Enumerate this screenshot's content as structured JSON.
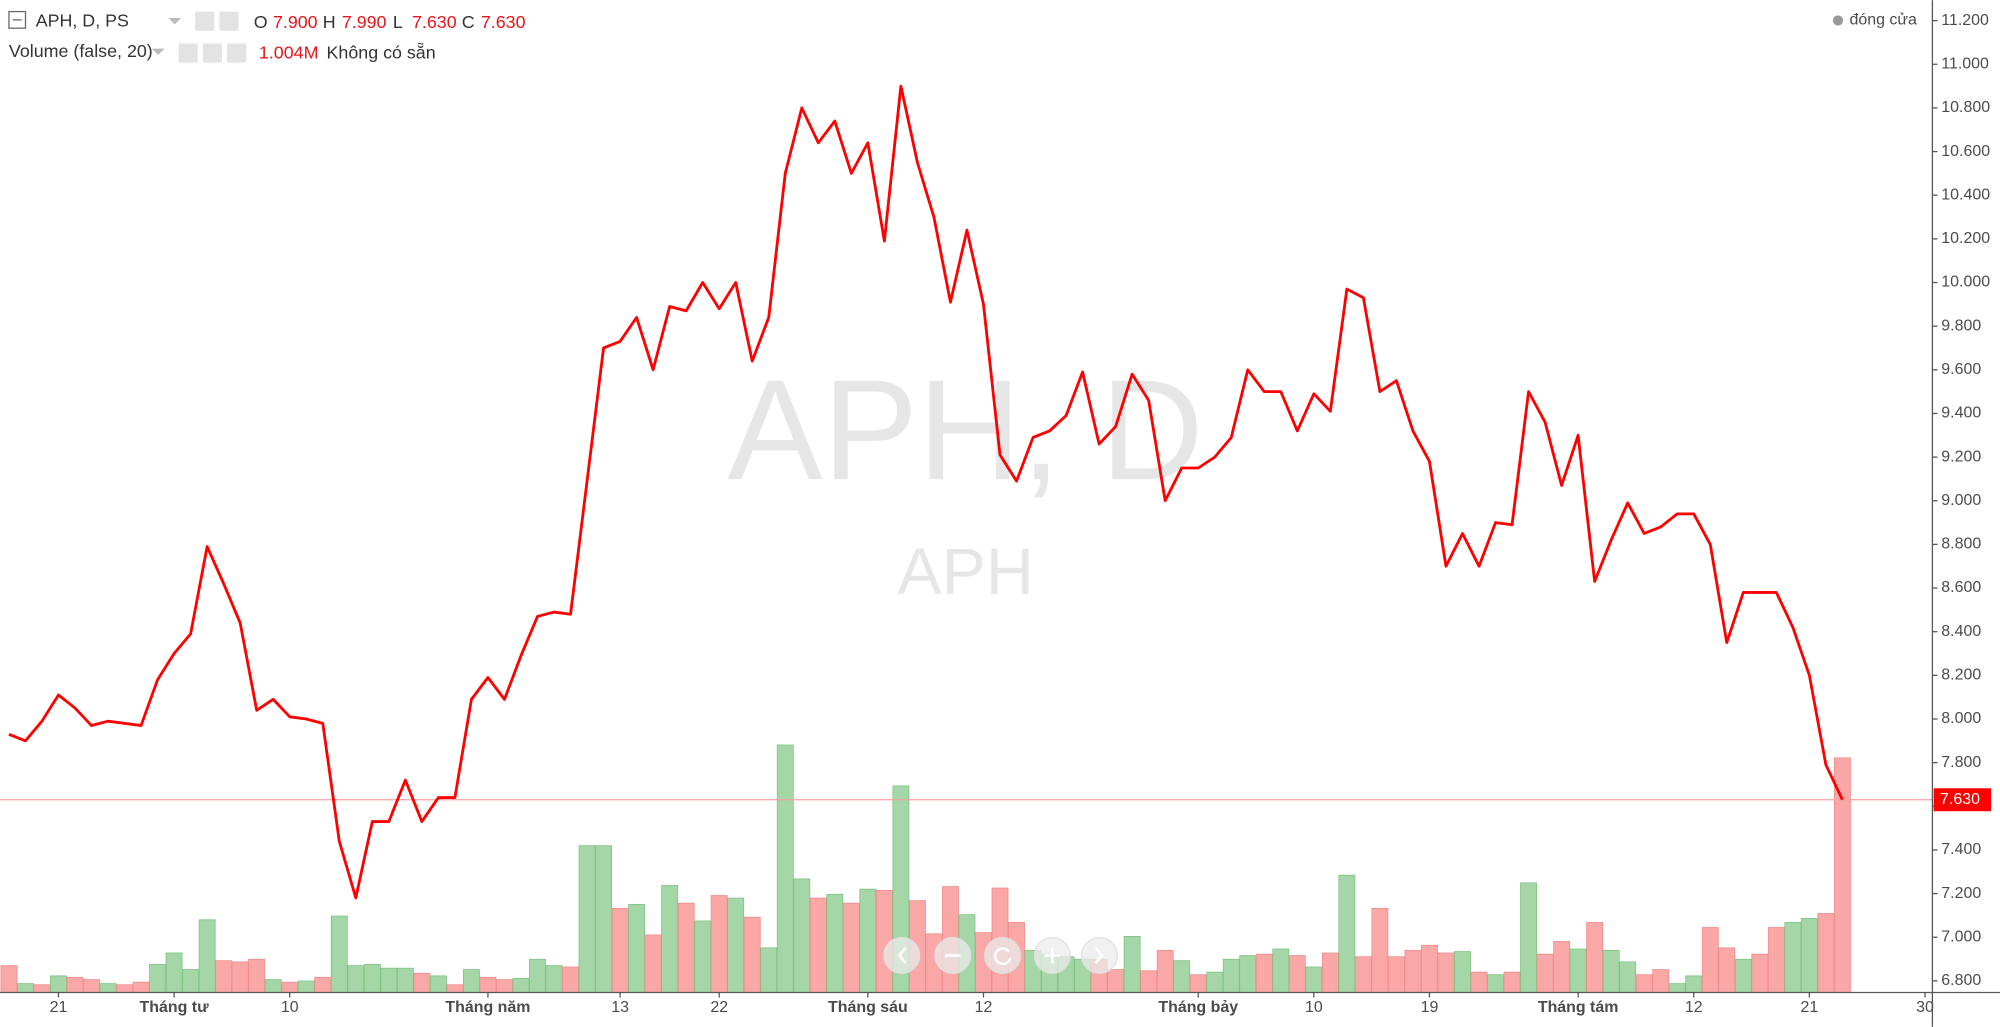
{
  "chart_data": {
    "type": "line",
    "title": "APH, D, PS",
    "ohlc": [
      {
        "key": "O",
        "value": "7.900"
      },
      {
        "key": "H",
        "value": "7.990"
      },
      {
        "key": "L",
        "value": "7.630"
      },
      {
        "key": "C",
        "value": "7.630"
      }
    ],
    "volume_title": "Volume (false, 20)",
    "volume_value": "1.004M",
    "volume_status": "Không có sẵn",
    "watermark": "APH, D",
    "watermark_sub": "APH",
    "series": [
      {
        "name": "đóng cửa",
        "color": "#ff0000",
        "values": [
          7.93,
          7.9,
          7.99,
          8.11,
          8.05,
          7.97,
          7.99,
          7.98,
          7.97,
          8.18,
          8.3,
          8.39,
          8.79,
          8.62,
          8.44,
          8.04,
          8.09,
          8.01,
          8.0,
          7.98,
          7.44,
          7.18,
          7.53,
          7.53,
          7.72,
          7.53,
          7.64,
          7.64,
          8.09,
          8.19,
          8.09,
          8.29,
          8.47,
          8.49,
          8.48,
          9.09,
          9.7,
          9.73,
          9.84,
          9.6,
          9.89,
          9.87,
          10.0,
          9.88,
          10.0,
          9.64,
          9.84,
          10.5,
          10.8,
          10.64,
          10.74,
          10.5,
          10.64,
          10.19,
          10.9,
          10.55,
          10.3,
          9.91,
          10.24,
          9.9,
          9.21,
          9.09,
          9.29,
          9.32,
          9.39,
          9.59,
          9.26,
          9.34,
          9.58,
          9.46,
          9.0,
          9.15,
          9.15,
          9.2,
          9.29,
          9.6,
          9.5,
          9.5,
          9.32,
          9.49,
          9.41,
          9.97,
          9.93,
          9.5,
          9.55,
          9.32,
          9.18,
          8.7,
          8.85,
          8.7,
          8.9,
          8.89,
          9.5,
          9.36,
          9.07,
          9.3,
          8.63,
          8.82,
          8.99,
          8.85,
          8.88,
          8.94,
          8.94,
          8.8,
          8.35,
          8.58,
          8.58,
          8.58,
          8.42,
          8.2,
          7.79,
          7.63,
          null,
          null,
          null,
          null,
          null
        ]
      }
    ],
    "volume": {
      "values": [
        115000,
        38000,
        33000,
        71000,
        65000,
        55000,
        38000,
        33000,
        44000,
        120000,
        169000,
        98000,
        311000,
        136000,
        131000,
        142000,
        55000,
        44000,
        49000,
        65000,
        327000,
        115000,
        120000,
        104000,
        104000,
        82000,
        71000,
        33000,
        98000,
        65000,
        55000,
        60000,
        142000,
        115000,
        109000,
        628000,
        628000,
        360000,
        377000,
        246000,
        458000,
        382000,
        306000,
        415000,
        404000,
        322000,
        191000,
        1059000,
        486000,
        404000,
        420000,
        382000,
        442000,
        437000,
        884000,
        393000,
        251000,
        453000,
        333000,
        256000,
        447000,
        300000,
        180000,
        164000,
        153000,
        142000,
        142000,
        98000,
        240000,
        93000,
        180000,
        136000,
        76000,
        87000,
        142000,
        158000,
        164000,
        186000,
        158000,
        109000,
        169000,
        502000,
        153000,
        360000,
        153000,
        180000,
        202000,
        169000,
        175000,
        87000,
        76000,
        87000,
        469000,
        164000,
        218000,
        186000,
        300000,
        180000,
        131000,
        76000,
        98000,
        38000,
        71000,
        278000,
        191000,
        142000,
        164000,
        278000,
        300000,
        317000,
        338000,
        1004000,
        null,
        null,
        null,
        null,
        null
      ],
      "colors": [
        "#f9a7a7",
        "#a5d6a7",
        "#f9a7a7",
        "#a5d6a7",
        "#f9a7a7",
        "#f9a7a7",
        "#a5d6a7",
        "#f9a7a7",
        "#f9a7a7",
        "#a5d6a7",
        "#a5d6a7",
        "#a5d6a7",
        "#a5d6a7",
        "#f9a7a7",
        "#f9a7a7",
        "#f9a7a7",
        "#a5d6a7",
        "#f9a7a7",
        "#a5d6a7",
        "#f9a7a7",
        "#a5d6a7",
        "#a5d6a7",
        "#a5d6a7",
        "#a5d6a7",
        "#a5d6a7",
        "#f9a7a7",
        "#a5d6a7",
        "#f9a7a7",
        "#a5d6a7",
        "#f9a7a7",
        "#f9a7a7",
        "#a5d6a7",
        "#a5d6a7",
        "#a5d6a7",
        "#f9a7a7",
        "#a5d6a7",
        "#a5d6a7",
        "#f9a7a7",
        "#a5d6a7",
        "#f9a7a7",
        "#a5d6a7",
        "#f9a7a7",
        "#a5d6a7",
        "#f9a7a7",
        "#a5d6a7",
        "#f9a7a7",
        "#a5d6a7",
        "#a5d6a7",
        "#a5d6a7",
        "#f9a7a7",
        "#a5d6a7",
        "#f9a7a7",
        "#a5d6a7",
        "#f9a7a7",
        "#a5d6a7",
        "#f9a7a7",
        "#f9a7a7",
        "#f9a7a7",
        "#a5d6a7",
        "#f9a7a7",
        "#f9a7a7",
        "#f9a7a7",
        "#a5d6a7",
        "#a5d6a7",
        "#a5d6a7",
        "#a5d6a7",
        "#f9a7a7",
        "#f9a7a7",
        "#a5d6a7",
        "#f9a7a7",
        "#f9a7a7",
        "#a5d6a7",
        "#f9a7a7",
        "#a5d6a7",
        "#a5d6a7",
        "#a5d6a7",
        "#f9a7a7",
        "#a5d6a7",
        "#f9a7a7",
        "#a5d6a7",
        "#f9a7a7",
        "#a5d6a7",
        "#f9a7a7",
        "#f9a7a7",
        "#f9a7a7",
        "#f9a7a7",
        "#f9a7a7",
        "#f9a7a7",
        "#a5d6a7",
        "#f9a7a7",
        "#a5d6a7",
        "#f9a7a7",
        "#a5d6a7",
        "#f9a7a7",
        "#f9a7a7",
        "#a5d6a7",
        "#f9a7a7",
        "#a5d6a7",
        "#a5d6a7",
        "#f9a7a7",
        "#f9a7a7",
        "#a5d6a7",
        "#a5d6a7",
        "#f9a7a7",
        "#f9a7a7",
        "#a5d6a7",
        "#f9a7a7",
        "#f9a7a7",
        "#a5d6a7",
        "#a5d6a7",
        "#f9a7a7",
        "#f9a7a7",
        null,
        null,
        null,
        null,
        null
      ]
    },
    "categories": [
      null,
      null,
      null,
      "21",
      null,
      null,
      null,
      null,
      null,
      null,
      "Tháng tư",
      null,
      null,
      null,
      null,
      null,
      null,
      "10",
      null,
      null,
      null,
      null,
      null,
      null,
      null,
      null,
      null,
      null,
      null,
      "Tháng năm",
      null,
      null,
      null,
      null,
      null,
      null,
      null,
      "13",
      null,
      null,
      null,
      null,
      null,
      "22",
      null,
      null,
      null,
      null,
      null,
      null,
      null,
      null,
      "Tháng sáu",
      null,
      null,
      null,
      null,
      null,
      null,
      "12",
      null,
      null,
      null,
      null,
      null,
      null,
      null,
      null,
      null,
      null,
      null,
      null,
      "Tháng bảy",
      null,
      null,
      null,
      null,
      null,
      null,
      "10",
      null,
      null,
      null,
      null,
      null,
      null,
      "19",
      null,
      null,
      null,
      null,
      null,
      null,
      null,
      null,
      "Tháng tám",
      null,
      null,
      null,
      null,
      null,
      null,
      "12",
      null,
      null,
      null,
      null,
      null,
      null,
      "21",
      null,
      null,
      null,
      null,
      null,
      null,
      "30"
    ],
    "last_price": {
      "value": 7.63,
      "label": "7.630"
    },
    "ylim": [
      6.747,
      11.294
    ],
    "yticks": [
      {
        "value": 6.8,
        "label": "6.800"
      },
      {
        "value": 7.0,
        "label": "7.000"
      },
      {
        "value": 7.2,
        "label": "7.200"
      },
      {
        "value": 7.4,
        "label": "7.400"
      },
      {
        "value": 7.6,
        "label": "7.600"
      },
      {
        "value": 7.8,
        "label": "7.800"
      },
      {
        "value": 8.0,
        "label": "8.000"
      },
      {
        "value": 8.2,
        "label": "8.200"
      },
      {
        "value": 8.4,
        "label": "8.400"
      },
      {
        "value": 8.6,
        "label": "8.600"
      },
      {
        "value": 8.8,
        "label": "8.800"
      },
      {
        "value": 9.0,
        "label": "9.000"
      },
      {
        "value": 9.2,
        "label": "9.200"
      },
      {
        "value": 9.4,
        "label": "9.400"
      },
      {
        "value": 9.6,
        "label": "9.600"
      },
      {
        "value": 9.8,
        "label": "9.800"
      },
      {
        "value": 10.0,
        "label": "10.000"
      },
      {
        "value": 10.2,
        "label": "10.200"
      },
      {
        "value": 10.4,
        "label": "10.400"
      },
      {
        "value": 10.6,
        "label": "10.600"
      },
      {
        "value": 10.8,
        "label": "10.800"
      },
      {
        "value": 11.0,
        "label": "11.000"
      },
      {
        "value": 11.2,
        "label": "11.200"
      }
    ],
    "grid": false
  }
}
